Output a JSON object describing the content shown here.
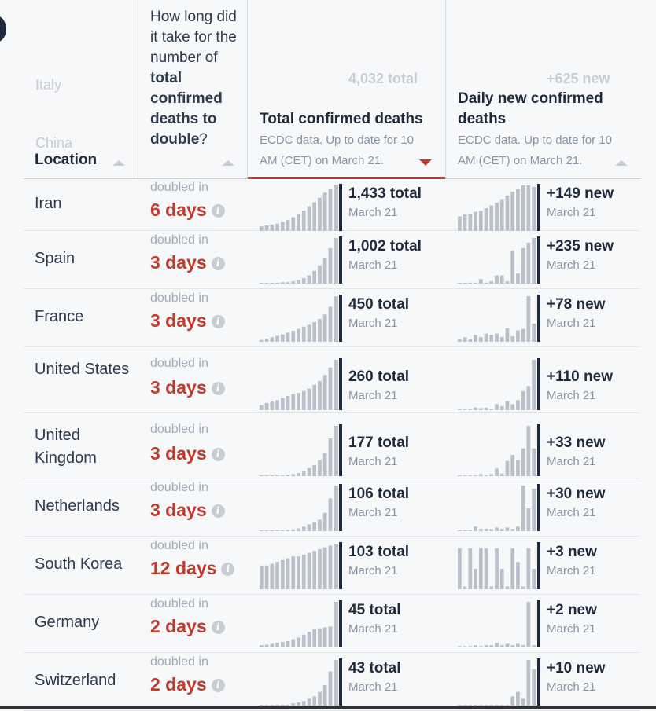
{
  "background_rows": [
    {
      "location": "Italy",
      "total": "4,032 total",
      "new": "+625 new"
    },
    {
      "location": "China"
    }
  ],
  "header": {
    "location": {
      "label": "Location"
    },
    "doubling": {
      "pre": "How long did it take for the number of",
      "bold": "total confirmed deaths to double",
      "post": "?"
    },
    "total": {
      "title": "Total confirmed deaths",
      "source": "ECDC data. Up to date for 10 AM (CET) on March 21."
    },
    "daily": {
      "title": "Daily new confirmed deaths",
      "source": "ECDC data. Up to date for 10 AM (CET) on March 21."
    }
  },
  "rows": [
    {
      "location": "Iran",
      "doubled_label": "doubled in",
      "doubling_days": "6 days",
      "total_label": "1,433 total",
      "total_date": "March 21",
      "new_label": "+149 new",
      "new_date": "March 21",
      "total_series": [
        0.1,
        0.12,
        0.14,
        0.16,
        0.2,
        0.24,
        0.3,
        0.37,
        0.45,
        0.54,
        0.63,
        0.73,
        0.84,
        0.93,
        1.0
      ],
      "daily_series": [
        0.32,
        0.36,
        0.38,
        0.42,
        0.44,
        0.5,
        0.56,
        0.62,
        0.7,
        0.78,
        0.86,
        0.92,
        1.0,
        1.0,
        0.97
      ]
    },
    {
      "location": "Spain",
      "doubled_label": "doubled in",
      "doubling_days": "3 days",
      "total_label": "1,002 total",
      "total_date": "March 21",
      "new_label": "+235 new",
      "new_date": "March 21",
      "total_series": [
        0.01,
        0.01,
        0.01,
        0.02,
        0.03,
        0.03,
        0.05,
        0.08,
        0.12,
        0.18,
        0.28,
        0.4,
        0.57,
        0.78,
        1.0
      ],
      "daily_series": [
        0,
        0,
        0.02,
        0.02,
        0.1,
        0.02,
        0.05,
        0.18,
        0.18,
        0.05,
        0.72,
        0.22,
        0.78,
        0.9,
        1.0
      ]
    },
    {
      "location": "France",
      "doubled_label": "doubled in",
      "doubling_days": "3 days",
      "total_label": "450 total",
      "total_date": "March 21",
      "new_label": "+78 new",
      "new_date": "March 21",
      "total_series": [
        0.04,
        0.07,
        0.1,
        0.13,
        0.16,
        0.2,
        0.24,
        0.28,
        0.33,
        0.37,
        0.43,
        0.5,
        0.6,
        0.77,
        1.0
      ],
      "daily_series": [
        0.05,
        0.1,
        0.05,
        0.15,
        0.1,
        0.18,
        0.15,
        0.18,
        0.1,
        0.3,
        0.12,
        0.25,
        0.28,
        1.0,
        0.4
      ]
    },
    {
      "location": "United States",
      "doubled_label": "doubled in",
      "doubling_days": "3 days",
      "total_label": "260 total",
      "total_date": "March 21",
      "new_label": "+110 new",
      "new_date": "March 21",
      "total_series": [
        0.1,
        0.14,
        0.17,
        0.2,
        0.24,
        0.28,
        0.32,
        0.34,
        0.38,
        0.43,
        0.5,
        0.58,
        0.7,
        0.85,
        1.0
      ],
      "daily_series": [
        0.03,
        0.03,
        0.03,
        0.05,
        0.04,
        0.05,
        0.03,
        0.12,
        0.08,
        0.18,
        0.12,
        0.2,
        0.38,
        0.48,
        1.0
      ]
    },
    {
      "location": "United Kingdom",
      "doubled_label": "doubled in",
      "doubling_days": "3 days",
      "total_label": "177 total",
      "total_date": "March 21",
      "new_label": "+33 new",
      "new_date": "March 21",
      "total_series": [
        0.01,
        0.01,
        0.01,
        0.02,
        0.02,
        0.03,
        0.04,
        0.06,
        0.1,
        0.16,
        0.22,
        0.32,
        0.46,
        0.75,
        1.0
      ],
      "daily_series": [
        0.02,
        0.02,
        0.02,
        0.02,
        0.04,
        0.02,
        0.04,
        0.15,
        0.05,
        0.3,
        0.42,
        0.32,
        0.55,
        1.0,
        0.55
      ]
    },
    {
      "location": "Netherlands",
      "doubled_label": "doubled in",
      "doubling_days": "3 days",
      "total_label": "106 total",
      "total_date": "March 21",
      "new_label": "+30 new",
      "new_date": "March 21",
      "total_series": [
        0.01,
        0.01,
        0.01,
        0.02,
        0.02,
        0.03,
        0.04,
        0.06,
        0.1,
        0.15,
        0.2,
        0.25,
        0.4,
        0.72,
        1.0
      ],
      "daily_series": [
        0.02,
        0.02,
        0.02,
        0.1,
        0.05,
        0.05,
        0.05,
        0.08,
        0.05,
        0.08,
        0.05,
        0.1,
        1.0,
        0.5,
        0.93
      ]
    },
    {
      "location": "South Korea",
      "doubled_label": "doubled in",
      "doubling_days": "12 days",
      "total_label": "103 total",
      "total_date": "March 21",
      "new_label": "+3 new",
      "new_date": "March 21",
      "total_series": [
        0.52,
        0.52,
        0.56,
        0.6,
        0.64,
        0.68,
        0.72,
        0.72,
        0.76,
        0.8,
        0.84,
        0.88,
        0.92,
        0.96,
        1.0
      ],
      "daily_series": [
        0.9,
        0.06,
        0.9,
        0.45,
        0.9,
        0.9,
        0.06,
        0.9,
        0.45,
        0.06,
        0.9,
        0.6,
        0.06,
        0.9,
        0.45
      ]
    },
    {
      "location": "Germany",
      "doubled_label": "doubled in",
      "doubling_days": "2 days",
      "total_label": "45 total",
      "total_date": "March 21",
      "new_label": "+2 new",
      "new_date": "March 21",
      "total_series": [
        0.05,
        0.06,
        0.08,
        0.1,
        0.12,
        0.14,
        0.18,
        0.22,
        0.28,
        0.34,
        0.4,
        0.42,
        0.44,
        0.46,
        1.0
      ],
      "daily_series": [
        0.03,
        0.03,
        0.03,
        0.05,
        0.03,
        0.05,
        0.05,
        0.1,
        0.05,
        0.08,
        0.05,
        0.08,
        0.05,
        1.0,
        0.05
      ]
    },
    {
      "location": "Switzerland",
      "doubled_label": "doubled in",
      "doubling_days": "2 days",
      "total_label": "43 total",
      "total_date": "March 21",
      "new_label": "+10 new",
      "new_date": "March 21",
      "total_series": [
        0.0,
        0.0,
        0.0,
        0.02,
        0.02,
        0.02,
        0.05,
        0.07,
        0.1,
        0.15,
        0.2,
        0.3,
        0.45,
        0.75,
        1.0
      ],
      "daily_series": [
        0.0,
        0.0,
        0.0,
        0.0,
        0.0,
        0.0,
        0.0,
        0.0,
        0.0,
        0.0,
        0.2,
        0.3,
        0.15,
        1.0,
        0.8
      ]
    }
  ],
  "colors": {
    "bar": "#b9c0ca",
    "bar_current": "#1e2a3c",
    "highlight": "#c0392b"
  }
}
